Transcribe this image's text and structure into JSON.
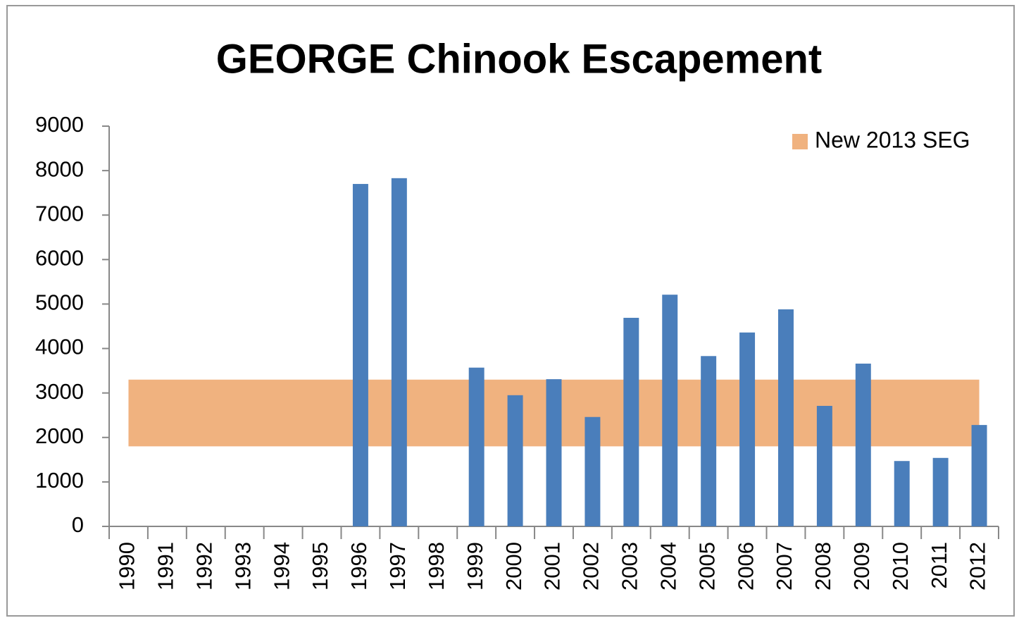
{
  "chart_data": {
    "type": "bar",
    "title": "GEORGE Chinook Escapement",
    "categories": [
      "1990",
      "1991",
      "1992",
      "1993",
      "1994",
      "1995",
      "1996",
      "1997",
      "1998",
      "1999",
      "2000",
      "2001",
      "2002",
      "2003",
      "2004",
      "2005",
      "2006",
      "2007",
      "2008",
      "2009",
      "2010",
      "2011",
      "2012"
    ],
    "values": [
      null,
      null,
      null,
      null,
      null,
      null,
      7700,
      7830,
      null,
      3570,
      2950,
      3310,
      2460,
      4690,
      5210,
      3830,
      4360,
      4880,
      2710,
      3660,
      1470,
      1540,
      2280
    ],
    "color": "#4a7ebb",
    "band": {
      "name": "New 2013 SEG",
      "low": 1800,
      "high": 3300,
      "color": "#f0b27f"
    },
    "ylim": [
      0,
      9000
    ],
    "yticks": [
      0,
      1000,
      2000,
      3000,
      4000,
      5000,
      6000,
      7000,
      8000,
      9000
    ],
    "legend": "top-right"
  }
}
